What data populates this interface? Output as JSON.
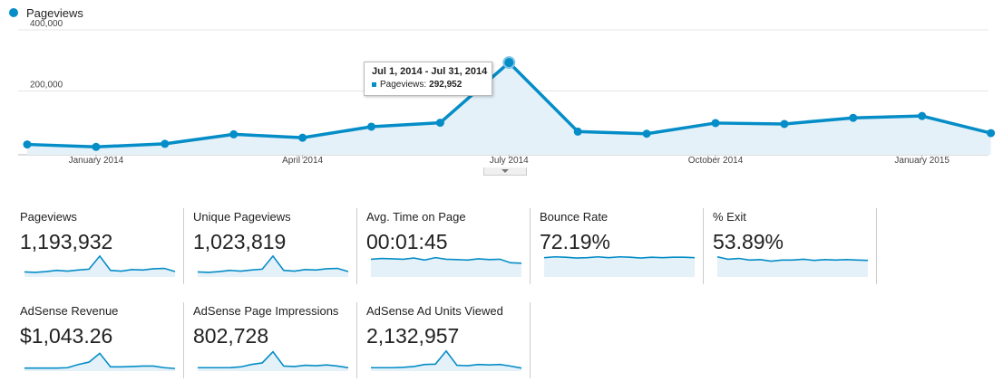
{
  "legend": {
    "label": "Pageviews",
    "color": "#058dc7"
  },
  "chart_data": {
    "type": "area",
    "series": [
      {
        "name": "Pageviews",
        "values": [
          25000,
          17000,
          27000,
          58000,
          47000,
          83000,
          96000,
          292952,
          67000,
          60000,
          95000,
          92000,
          112000,
          118000,
          62000
        ]
      }
    ],
    "x_labels": [
      "January 2014",
      "April 2014",
      "July 2014",
      "October 2014",
      "January 2015"
    ],
    "y_ticks": [
      "400,000",
      "200,000"
    ],
    "ylim": [
      0,
      400000
    ],
    "grid": true,
    "color": "#058dc7",
    "fill": "#e5f1f9"
  },
  "tooltip": {
    "date": "Jul 1, 2014 - Jul 31, 2014",
    "series": "Pageviews:",
    "value": "292,952"
  },
  "metrics": [
    {
      "label": "Pageviews",
      "value": "1,193,932",
      "spark": [
        8,
        7,
        9,
        12,
        10,
        13,
        15,
        48,
        12,
        10,
        14,
        13,
        16,
        17,
        9
      ],
      "ylim": [
        0,
        50
      ]
    },
    {
      "label": "Unique Pageviews",
      "value": "1,023,819",
      "spark": [
        8,
        7,
        9,
        12,
        10,
        13,
        15,
        48,
        12,
        10,
        14,
        13,
        16,
        17,
        9
      ],
      "ylim": [
        0,
        50
      ]
    },
    {
      "label": "Avg. Time on Page",
      "value": "00:01:45",
      "spark": [
        40,
        42,
        41,
        40,
        43,
        38,
        44,
        40,
        39,
        38,
        41,
        39,
        40,
        31,
        30
      ],
      "ylim": [
        0,
        50
      ]
    },
    {
      "label": "Bounce Rate",
      "value": "72.19%",
      "spark": [
        44,
        46,
        45,
        43,
        44,
        46,
        44,
        46,
        45,
        43,
        45,
        44,
        45,
        45,
        44
      ],
      "ylim": [
        0,
        50
      ]
    },
    {
      "label": "% Exit",
      "value": "53.89%",
      "spark": [
        46,
        40,
        42,
        38,
        39,
        35,
        38,
        38,
        40,
        37,
        39,
        38,
        39,
        38,
        37
      ],
      "ylim": [
        0,
        50
      ]
    },
    {
      "label": "AdSense Revenue",
      "value": "$1,043.26",
      "spark": [
        3,
        3,
        3,
        3,
        4,
        12,
        18,
        40,
        6,
        6,
        7,
        8,
        8,
        4,
        2
      ],
      "ylim": [
        0,
        50
      ]
    },
    {
      "label": "AdSense Page Impressions",
      "value": "802,728",
      "spark": [
        4,
        4,
        4,
        4,
        6,
        12,
        16,
        44,
        8,
        7,
        10,
        9,
        11,
        8,
        4
      ],
      "ylim": [
        0,
        50
      ]
    },
    {
      "label": "AdSense Ad Units Viewed",
      "value": "2,132,957",
      "spark": [
        4,
        4,
        4,
        5,
        7,
        12,
        13,
        46,
        10,
        9,
        12,
        11,
        12,
        8,
        3
      ],
      "ylim": [
        0,
        50
      ]
    }
  ]
}
